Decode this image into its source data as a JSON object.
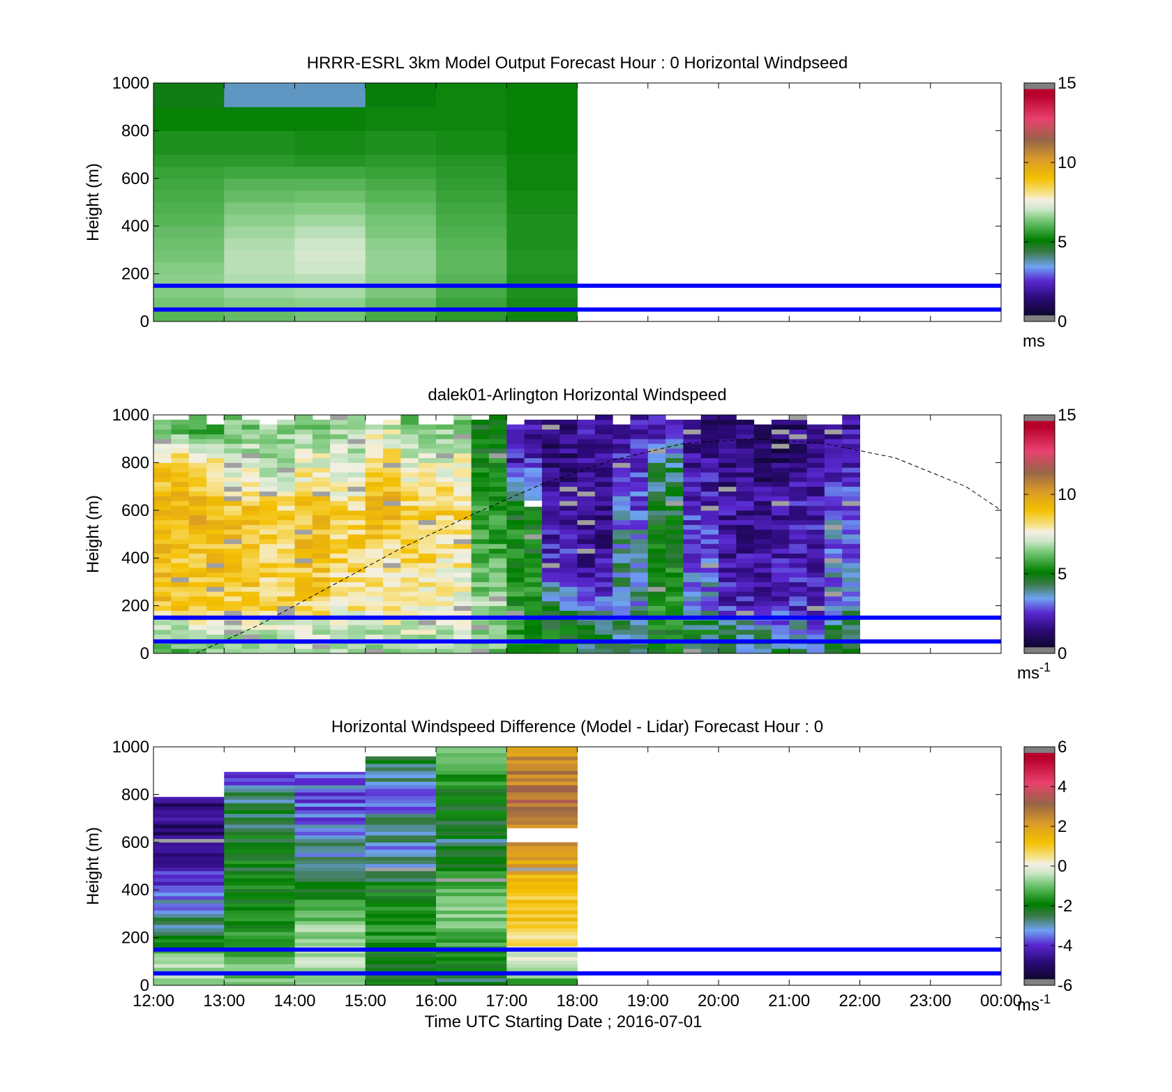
{
  "panels": [
    {
      "title": "HRRR-ESRL 3km Model Output   Forecast Hour : 0 Horizontal Windpseed",
      "ylabel": "Height (m)",
      "unit_base": "ms",
      "unit_sup": "",
      "cbar_ticks": [
        "15",
        "10",
        "5",
        "0"
      ]
    },
    {
      "title": "dalek01-Arlington  Horizontal Windspeed",
      "ylabel": "Height (m)",
      "unit_base": "ms",
      "unit_sup": "-1",
      "cbar_ticks": [
        "15",
        "10",
        "5",
        "0"
      ]
    },
    {
      "title": "Horizontal Windspeed Difference (Model - Lidar) Forecast Hour : 0",
      "ylabel": "Height (m)",
      "unit_base": "ms",
      "unit_sup": "-1",
      "cbar_ticks": [
        "6",
        "4",
        "2",
        "0",
        "-2",
        "-4",
        "-6"
      ]
    }
  ],
  "xlabel": "Time UTC  Starting Date ; 2016-07-01",
  "colors": {
    "reference_line": "#0000ff",
    "axis": "#000000"
  },
  "chart_data": [
    {
      "type": "heatmap",
      "title": "HRRR-ESRL 3km Model Output   Forecast Hour : 0 Horizontal Windpseed",
      "ylabel": "Height (m)",
      "x_ticks": [
        "12:00",
        "13:00",
        "14:00",
        "15:00",
        "16:00",
        "17:00",
        "18:00",
        "19:00",
        "20:00",
        "21:00",
        "22:00",
        "23:00",
        "00:00"
      ],
      "y_ticks": [
        0,
        200,
        400,
        600,
        800,
        1000
      ],
      "ylim": [
        0,
        1000
      ],
      "xlim_hours": [
        12,
        24
      ],
      "color_scale": {
        "min": 0,
        "max": 15,
        "ticks": [
          0,
          5,
          10,
          15
        ],
        "unit": "ms"
      },
      "data_extent_hours": [
        12,
        18
      ],
      "hours": [
        12,
        13,
        14,
        15,
        16,
        17
      ],
      "heights_m": [
        0,
        50,
        100,
        150,
        200,
        250,
        300,
        350,
        400,
        450,
        500,
        550,
        600,
        650,
        700,
        800,
        900
      ],
      "windspeed_ms": [
        [
          5.6,
          5.8,
          6.0,
          5.4,
          5.0,
          4.6
        ],
        [
          6.0,
          6.2,
          6.3,
          5.8,
          5.2,
          4.7
        ],
        [
          6.2,
          6.5,
          6.6,
          6.1,
          5.4,
          4.8
        ],
        [
          6.3,
          6.7,
          6.8,
          6.3,
          5.6,
          4.8
        ],
        [
          6.2,
          6.8,
          7.0,
          6.4,
          5.7,
          4.9
        ],
        [
          6.0,
          6.8,
          7.1,
          6.4,
          5.7,
          4.9
        ],
        [
          5.9,
          6.7,
          7.0,
          6.3,
          5.6,
          4.8
        ],
        [
          5.8,
          6.5,
          6.8,
          6.1,
          5.5,
          4.8
        ],
        [
          5.6,
          6.3,
          6.5,
          6.0,
          5.4,
          4.8
        ],
        [
          5.5,
          6.1,
          6.2,
          5.8,
          5.3,
          4.7
        ],
        [
          5.4,
          5.8,
          5.9,
          5.6,
          5.2,
          4.7
        ],
        [
          5.3,
          5.6,
          5.6,
          5.4,
          5.1,
          4.6
        ],
        [
          5.2,
          5.3,
          5.3,
          5.2,
          5.0,
          4.6
        ],
        [
          5.0,
          5.0,
          4.9,
          5.0,
          4.9,
          4.6
        ],
        [
          4.8,
          4.8,
          4.7,
          4.8,
          4.7,
          4.5
        ],
        [
          4.5,
          4.5,
          4.5,
          4.6,
          4.6,
          4.5
        ],
        [
          4.2,
          3.2,
          3.2,
          4.3,
          4.6,
          4.5
        ]
      ],
      "reference_lines_m": [
        50,
        150
      ]
    },
    {
      "type": "heatmap",
      "title": "dalek01-Arlington  Horizontal Windspeed",
      "ylabel": "Height (m)",
      "x_ticks": [
        "12:00",
        "13:00",
        "14:00",
        "15:00",
        "16:00",
        "17:00",
        "18:00",
        "19:00",
        "20:00",
        "21:00",
        "22:00",
        "23:00",
        "00:00"
      ],
      "y_ticks": [
        0,
        200,
        400,
        600,
        800,
        1000
      ],
      "ylim": [
        0,
        1000
      ],
      "xlim_hours": [
        12,
        24
      ],
      "color_scale": {
        "min": 0,
        "max": 15,
        "ticks": [
          0,
          5,
          10,
          15
        ],
        "unit": "ms-1"
      },
      "data_extent_hours": [
        12,
        21.85
      ],
      "hours": [
        12.0,
        12.5,
        13.0,
        13.5,
        14.0,
        14.5,
        15.0,
        15.5,
        16.0,
        16.5,
        17.0,
        17.5,
        18.0,
        18.5,
        19.0,
        19.5,
        20.0,
        20.5,
        21.0,
        21.5
      ],
      "heights_m": [
        0,
        100,
        200,
        400,
        600,
        800,
        950
      ],
      "windspeed_ms": [
        [
          5.5,
          6.0,
          6.0,
          6.0,
          6.5,
          6.5,
          6.5,
          6.5,
          6.5,
          6.0,
          4.5,
          4.5,
          4.0,
          3.5,
          4.5,
          4.0,
          3.5,
          4.0,
          3.5,
          4.5
        ],
        [
          6.5,
          7.0,
          7.0,
          7.0,
          7.0,
          7.0,
          7.0,
          7.0,
          7.0,
          6.5,
          5.0,
          4.5,
          4.0,
          3.5,
          4.5,
          4.0,
          3.5,
          3.0,
          3.0,
          4.0
        ],
        [
          9.0,
          9.0,
          8.5,
          8.5,
          8.5,
          8.0,
          8.0,
          7.5,
          7.5,
          6.5,
          4.8,
          3.5,
          2.5,
          3.0,
          4.8,
          3.0,
          2.0,
          1.8,
          2.0,
          3.0
        ],
        [
          9.0,
          9.0,
          9.0,
          8.5,
          9.0,
          8.5,
          8.0,
          8.5,
          8.0,
          5.5,
          4.5,
          2.0,
          1.5,
          3.5,
          4.6,
          2.5,
          1.5,
          1.8,
          2.0,
          2.8
        ],
        [
          9.5,
          9.5,
          9.0,
          8.5,
          9.0,
          8.5,
          9.5,
          8.5,
          8.5,
          5.0,
          4.5,
          1.5,
          1.2,
          2.5,
          4.2,
          2.0,
          1.5,
          1.5,
          1.8,
          2.5
        ],
        [
          8.5,
          8.0,
          7.0,
          6.5,
          7.5,
          7.0,
          8.5,
          7.5,
          7.5,
          4.5,
          2.0,
          1.2,
          1.5,
          2.0,
          3.5,
          1.5,
          1.2,
          1.0,
          1.5,
          2.0
        ],
        [
          5.5,
          5.0,
          6.0,
          6.5,
          6.0,
          6.5,
          7.0,
          6.0,
          6.0,
          4.5,
          1.5,
          1.0,
          1.5,
          2.0,
          1.8,
          1.0,
          1.0,
          0.8,
          1.0,
          1.5
        ]
      ],
      "sun_elevation_curve_m": {
        "hours": [
          12.6,
          13.5,
          14.5,
          15.5,
          16.5,
          17.5,
          18.5,
          19.5,
          20.5,
          21.5,
          22.5,
          23.5,
          24.0
        ],
        "height": [
          0,
          120,
          280,
          440,
          580,
          710,
          810,
          880,
          900,
          880,
          820,
          700,
          600
        ]
      },
      "reference_lines_m": [
        50,
        150
      ]
    },
    {
      "type": "heatmap",
      "title": "Horizontal Windspeed Difference (Model - Lidar) Forecast Hour : 0",
      "ylabel": "Height (m)",
      "xlabel": "Time UTC  Starting Date ; 2016-07-01",
      "x_ticks": [
        "12:00",
        "13:00",
        "14:00",
        "15:00",
        "16:00",
        "17:00",
        "18:00",
        "19:00",
        "20:00",
        "21:00",
        "22:00",
        "23:00",
        "00:00"
      ],
      "y_ticks": [
        0,
        200,
        400,
        600,
        800,
        1000
      ],
      "ylim": [
        0,
        1000
      ],
      "xlim_hours": [
        12,
        24
      ],
      "color_scale": {
        "min": -6,
        "max": 6,
        "ticks": [
          -6,
          -4,
          -2,
          0,
          2,
          4,
          6
        ],
        "unit": "ms-1"
      },
      "hours": [
        12,
        13,
        14,
        15,
        16,
        17
      ],
      "column_top_m": [
        790,
        895,
        895,
        960,
        1000,
        1000
      ],
      "gap_m": {
        "hour": 17,
        "from": 590,
        "to": 650
      },
      "heights_m": [
        0,
        100,
        200,
        300,
        400,
        500,
        600,
        700,
        800,
        900,
        1000
      ],
      "difference_ms": [
        [
          -1.0,
          -1.5,
          -1.5,
          -2.8,
          -2.8,
          -1.8
        ],
        [
          -0.5,
          -1.2,
          -0.5,
          -2.5,
          -2.5,
          -0.5
        ],
        [
          -2.8,
          -2.2,
          -0.8,
          -2.2,
          -1.5,
          0.8
        ],
        [
          -3.5,
          -2.0,
          -1.5,
          -2.0,
          -1.2,
          1.0
        ],
        [
          -4.0,
          -2.5,
          -2.5,
          -2.5,
          -1.5,
          1.2
        ],
        [
          -4.5,
          -2.5,
          -3.0,
          -3.5,
          -2.5,
          2.0
        ],
        [
          -5.0,
          -2.5,
          -3.5,
          -3.5,
          -3.0,
          2.5
        ],
        [
          -5.0,
          -3.0,
          -4.0,
          -3.5,
          -2.8,
          2.8
        ],
        [
          -5.0,
          -3.2,
          -4.0,
          -4.0,
          -2.5,
          3.0
        ],
        [
          null,
          -4.2,
          -3.5,
          -3.0,
          -2.0,
          2.5
        ],
        [
          null,
          null,
          null,
          -3.0,
          -1.5,
          2.0
        ]
      ],
      "reference_lines_m": [
        50,
        150
      ]
    }
  ]
}
